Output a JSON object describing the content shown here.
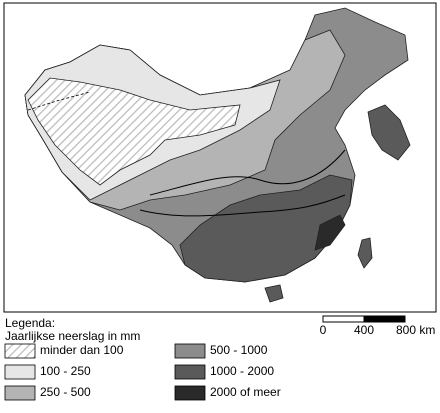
{
  "legend": {
    "title": "Legenda:",
    "subtitle": "Jaarlijkse neerslag in mm",
    "items": [
      {
        "label": "minder dan 100"
      },
      {
        "label": "100 - 250"
      },
      {
        "label": "250 - 500"
      },
      {
        "label": "500 - 1000"
      },
      {
        "label": "1000 - 2000"
      },
      {
        "label": "2000 of meer"
      }
    ]
  },
  "scale_bar": {
    "labels": [
      "0",
      "400",
      "800 km"
    ]
  }
}
